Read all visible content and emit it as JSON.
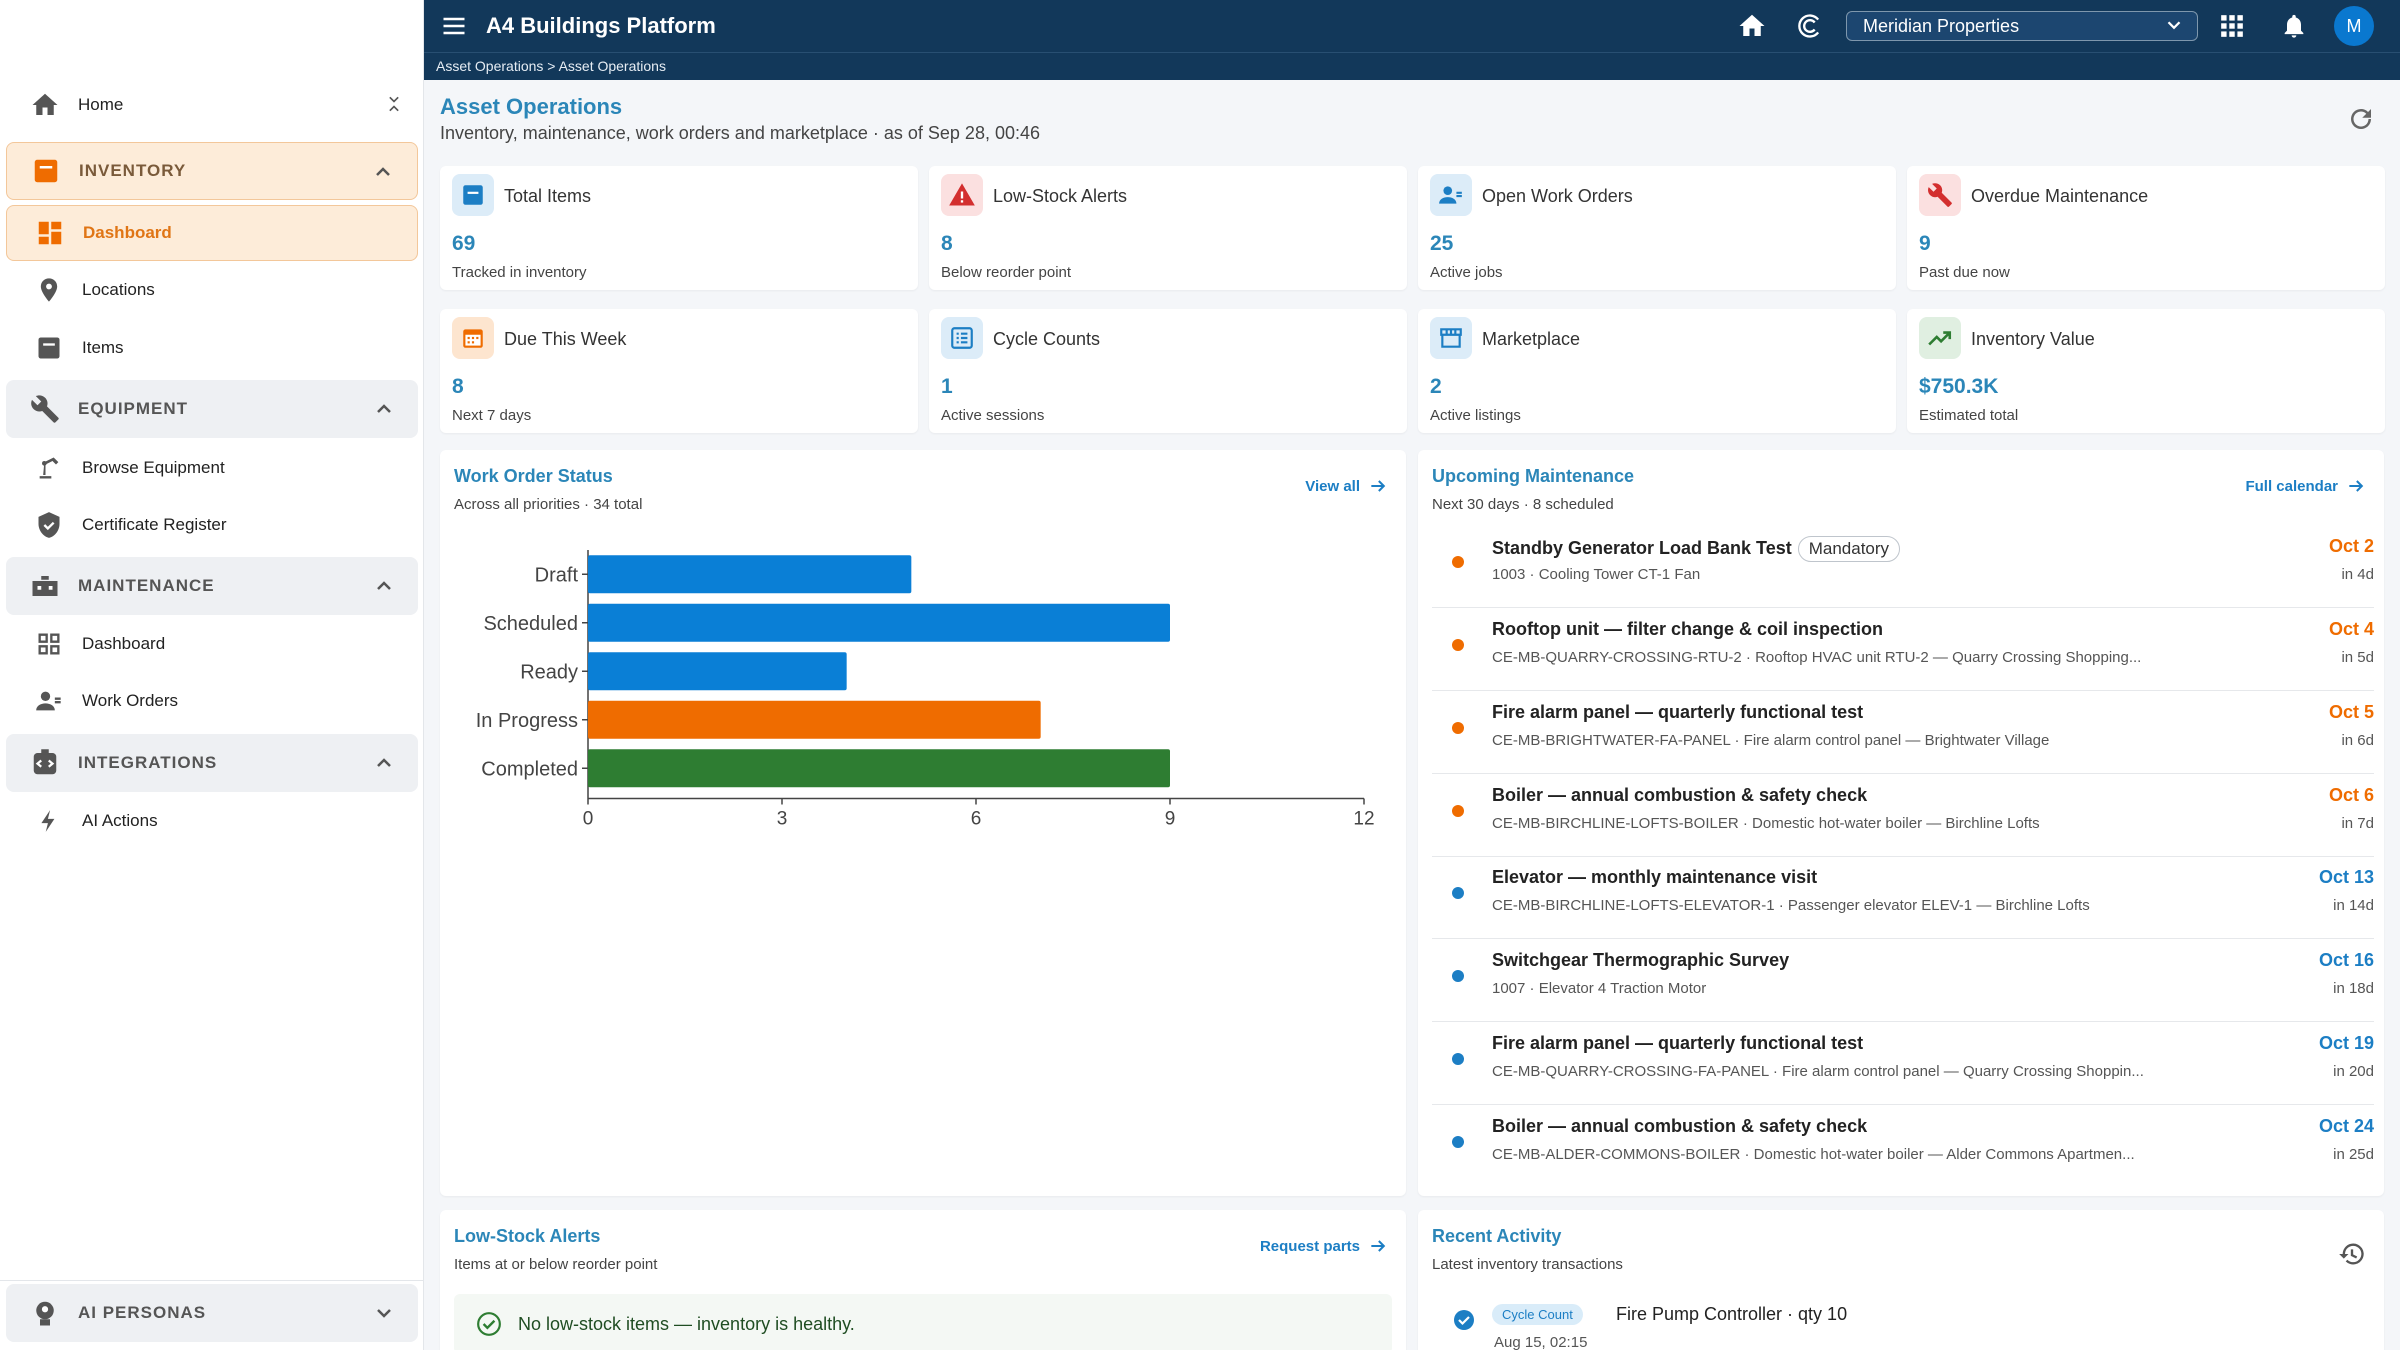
{
  "app": {
    "title": "A4 Buildings Platform",
    "org": "Meridian Properties",
    "avatar_initial": "M"
  },
  "breadcrumb": "Asset Operations > Asset Operations",
  "sidebar": {
    "home": "Home",
    "sections": {
      "inventory": "INVENTORY",
      "equipment": "EQUIPMENT",
      "maintenance": "MAINTENANCE",
      "integrations": "INTEGRATIONS",
      "ai_personas": "AI PERSONAS"
    },
    "items": {
      "inv_dashboard": "Dashboard",
      "locations": "Locations",
      "items": "Items",
      "browse_equipment": "Browse Equipment",
      "certificate_register": "Certificate Register",
      "maint_dashboard": "Dashboard",
      "work_orders": "Work Orders",
      "ai_actions": "AI Actions"
    }
  },
  "page": {
    "title": "Asset Operations",
    "subtitle": "Inventory, maintenance, work orders and marketplace · as of Sep 28, 00:46"
  },
  "kpis": [
    {
      "label": "Total Items",
      "value": "69",
      "sub": "Tracked in inventory",
      "icon": "inventory-icon",
      "color": "#1c7ec4"
    },
    {
      "label": "Low-Stock Alerts",
      "value": "8",
      "sub": "Below reorder point",
      "icon": "warning-icon",
      "color": "#d32f2f"
    },
    {
      "label": "Open Work Orders",
      "value": "25",
      "sub": "Active jobs",
      "icon": "engineer-icon",
      "color": "#1c7ec4"
    },
    {
      "label": "Overdue Maintenance",
      "value": "9",
      "sub": "Past due now",
      "icon": "wrench-icon",
      "color": "#d32f2f"
    },
    {
      "label": "Due This Week",
      "value": "8",
      "sub": "Next 7 days",
      "icon": "calendar-icon",
      "color": "#ef6c00"
    },
    {
      "label": "Cycle Counts",
      "value": "1",
      "sub": "Active sessions",
      "icon": "checklist-icon",
      "color": "#1c7ec4"
    },
    {
      "label": "Marketplace",
      "value": "2",
      "sub": "Active listings",
      "icon": "storefront-icon",
      "color": "#1c7ec4"
    },
    {
      "label": "Inventory Value",
      "value": "$750.3K",
      "sub": "Estimated total",
      "icon": "trending-up-icon",
      "color": "#2e7d32"
    }
  ],
  "work_order_status": {
    "title": "Work Order Status",
    "subtitle": "Across all priorities · 34 total",
    "link": "View all"
  },
  "chart_data": {
    "type": "bar",
    "orientation": "horizontal",
    "categories": [
      "Draft",
      "Scheduled",
      "Ready",
      "In Progress",
      "Completed"
    ],
    "values": [
      5,
      9,
      4,
      7,
      9
    ],
    "colors": [
      "#0a7fd6",
      "#0a7fd6",
      "#0a7fd6",
      "#ef6c00",
      "#2e7d32"
    ],
    "xlim": [
      0,
      12
    ],
    "xticks": [
      0,
      3,
      6,
      9,
      12
    ],
    "grid": false
  },
  "upcoming": {
    "title": "Upcoming Maintenance",
    "subtitle": "Next 30 days · 8 scheduled",
    "link": "Full calendar",
    "items": [
      {
        "title": "Standby Generator Load Bank Test",
        "tag": "Mandatory",
        "sub": "1003 · Cooling Tower CT-1 Fan",
        "date": "Oct 2",
        "in": "in 4d",
        "color": "#ef6c00"
      },
      {
        "title": "Rooftop unit — filter change & coil inspection",
        "tag": "",
        "sub": "CE-MB-QUARRY-CROSSING-RTU-2 · Rooftop HVAC unit RTU-2 — Quarry Crossing Shopping...",
        "date": "Oct 4",
        "in": "in 5d",
        "color": "#ef6c00"
      },
      {
        "title": "Fire alarm panel — quarterly functional test",
        "tag": "",
        "sub": "CE-MB-BRIGHTWATER-FA-PANEL · Fire alarm control panel — Brightwater Village",
        "date": "Oct 5",
        "in": "in 6d",
        "color": "#ef6c00"
      },
      {
        "title": "Boiler — annual combustion & safety check",
        "tag": "",
        "sub": "CE-MB-BIRCHLINE-LOFTS-BOILER · Domestic hot-water boiler — Birchline Lofts",
        "date": "Oct 6",
        "in": "in 7d",
        "color": "#ef6c00"
      },
      {
        "title": "Elevator — monthly maintenance visit",
        "tag": "",
        "sub": "CE-MB-BIRCHLINE-LOFTS-ELEVATOR-1 · Passenger elevator ELEV-1 — Birchline Lofts",
        "date": "Oct 13",
        "in": "in 14d",
        "color": "#1c7ec4"
      },
      {
        "title": "Switchgear Thermographic Survey",
        "tag": "",
        "sub": "1007 · Elevator 4 Traction Motor",
        "date": "Oct 16",
        "in": "in 18d",
        "color": "#1c7ec4"
      },
      {
        "title": "Fire alarm panel — quarterly functional test",
        "tag": "",
        "sub": "CE-MB-QUARRY-CROSSING-FA-PANEL · Fire alarm control panel — Quarry Crossing Shoppin...",
        "date": "Oct 19",
        "in": "in 20d",
        "color": "#1c7ec4"
      },
      {
        "title": "Boiler — annual combustion & safety check",
        "tag": "",
        "sub": "CE-MB-ALDER-COMMONS-BOILER · Domestic hot-water boiler — Alder Commons Apartmen...",
        "date": "Oct 24",
        "in": "in 25d",
        "color": "#1c7ec4"
      }
    ]
  },
  "low_stock": {
    "title": "Low-Stock Alerts",
    "subtitle": "Items at or below reorder point",
    "link": "Request parts",
    "empty_message": "No low-stock items — inventory is healthy."
  },
  "recent_activity": {
    "title": "Recent Activity",
    "subtitle": "Latest inventory transactions",
    "items": [
      {
        "chip": "Cycle Count",
        "text": "Fire Pump Controller · qty 10",
        "time": "Aug 15, 02:15"
      }
    ]
  }
}
